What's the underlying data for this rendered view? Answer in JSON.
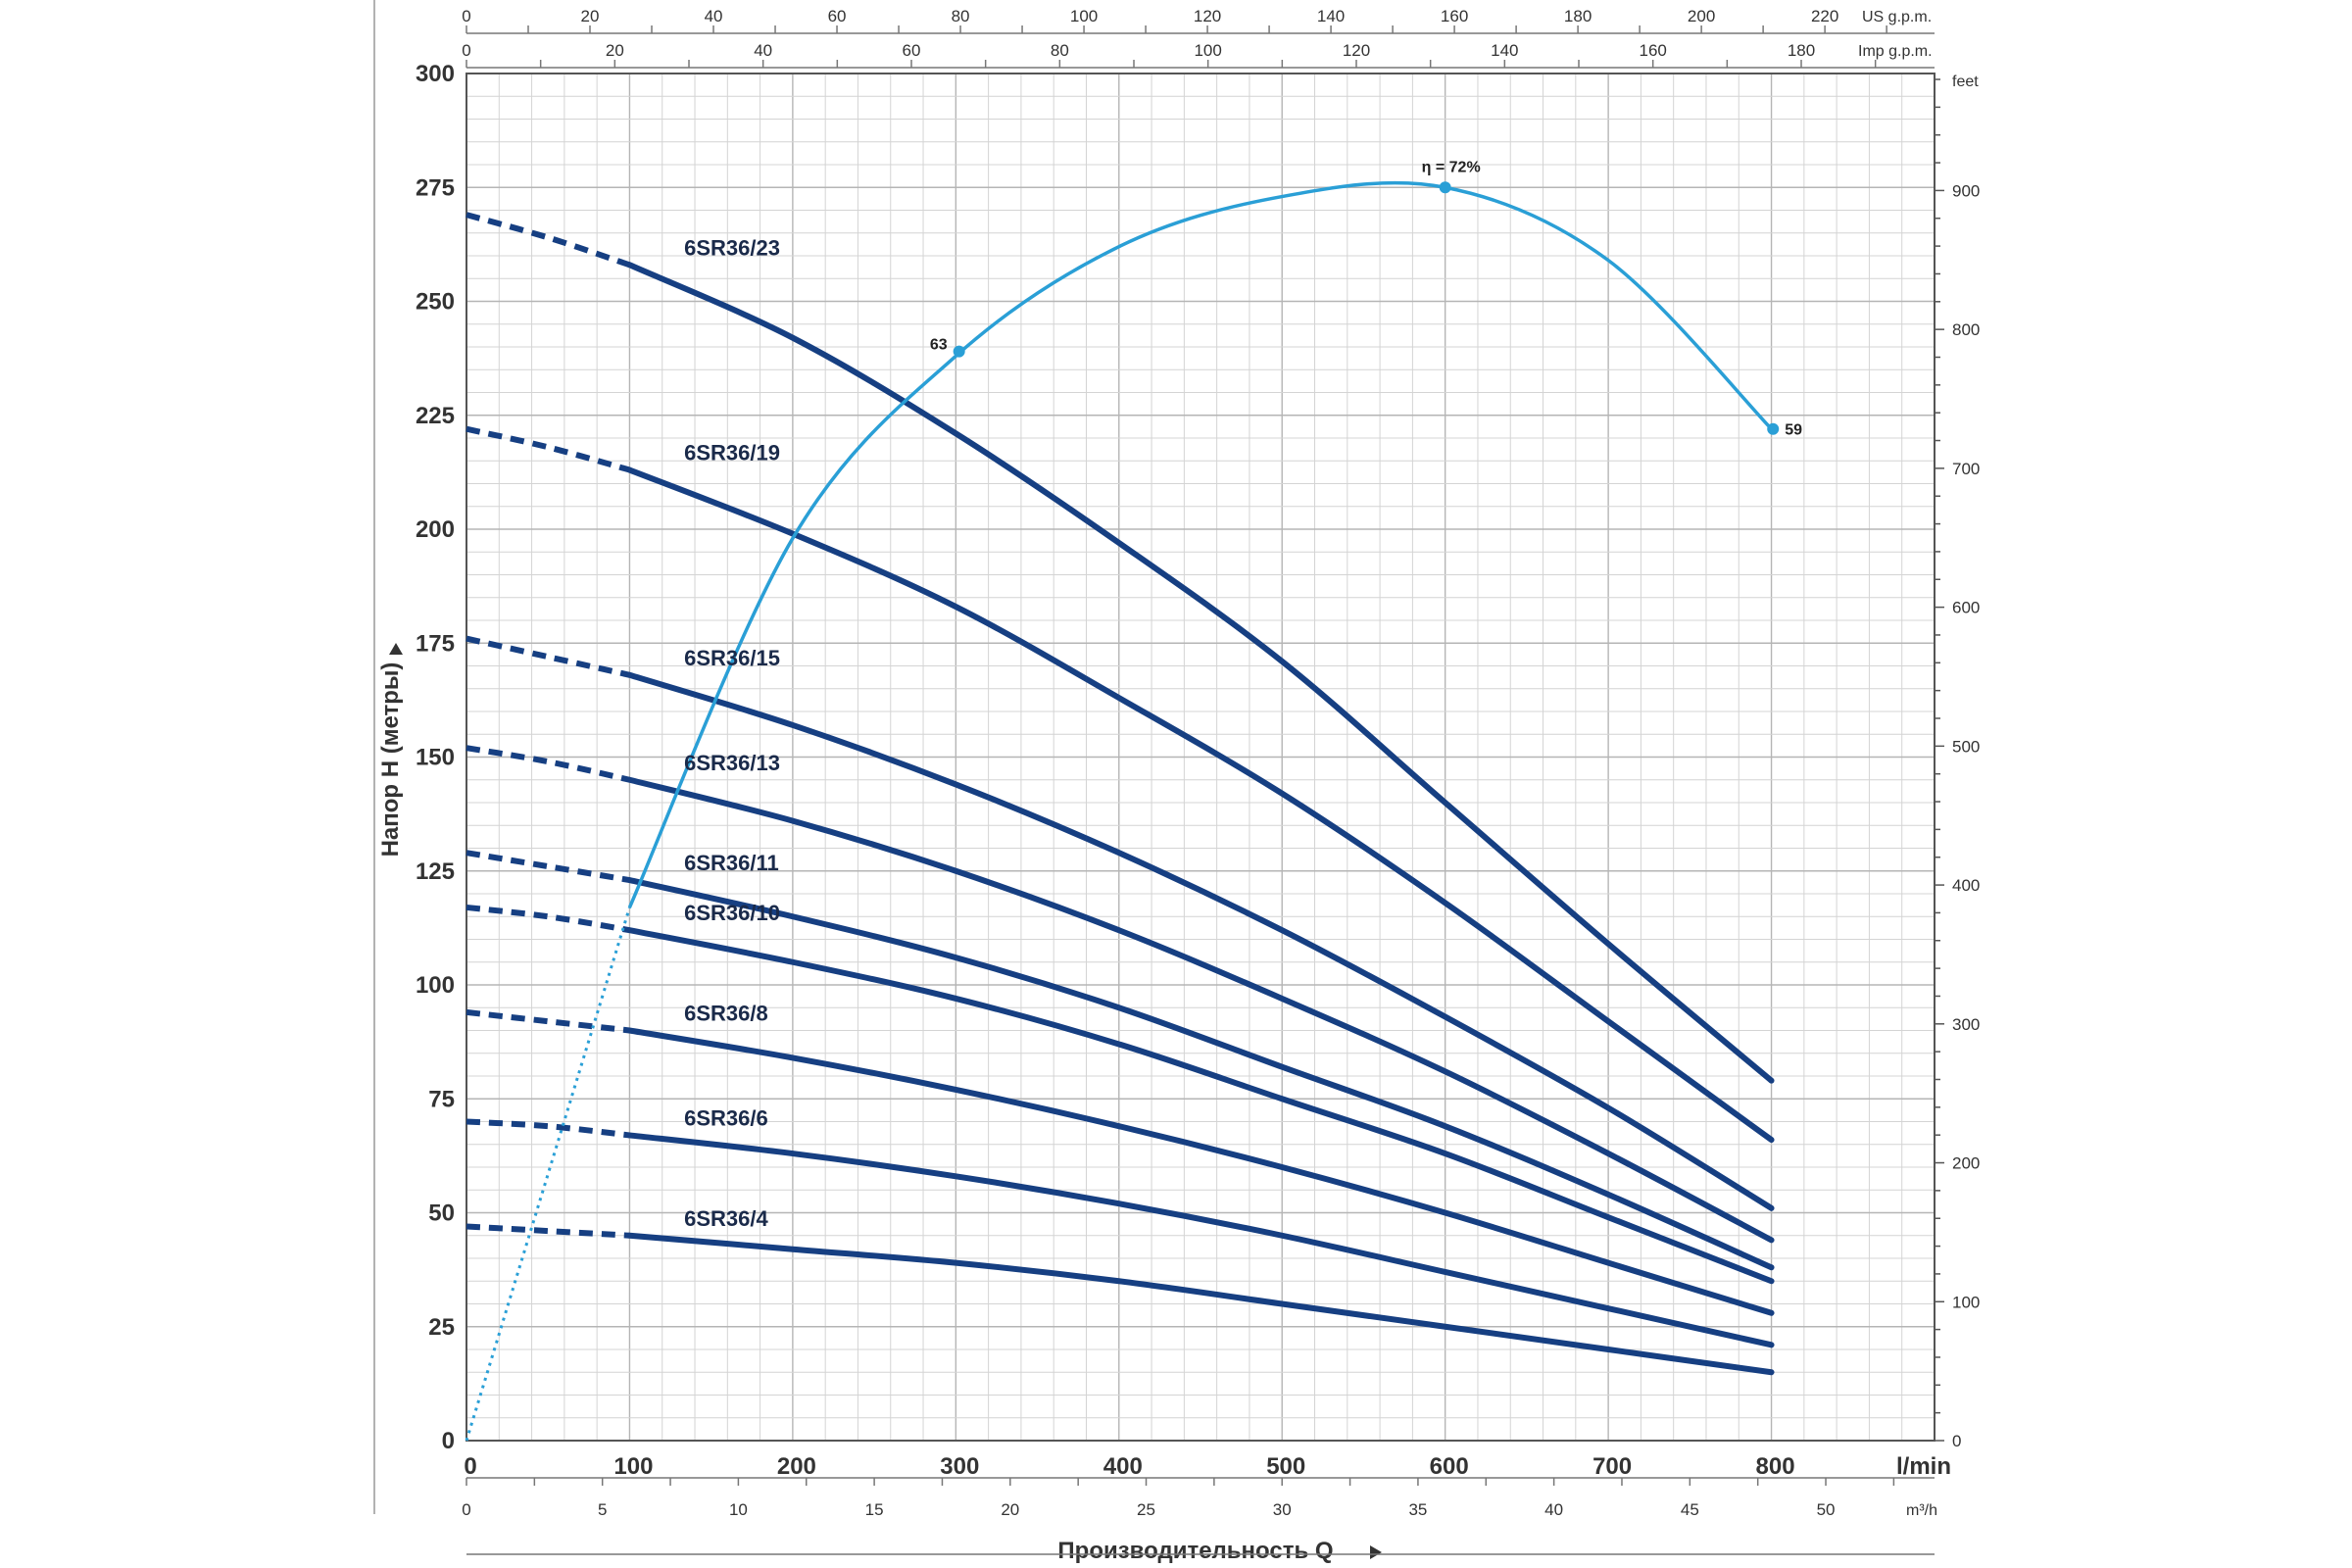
{
  "chart_data": {
    "type": "line",
    "title": "",
    "xlabel": "Производительность Q",
    "ylabel": "Напор H (метры)",
    "xlim": [
      0,
      900
    ],
    "ylim": [
      0,
      300
    ],
    "x_unit": "l/min",
    "x_ticks": [
      "0",
      "100",
      "200",
      "300",
      "400",
      "500",
      "600",
      "700",
      "800"
    ],
    "y_ticks": [
      "0",
      "25",
      "50",
      "75",
      "100",
      "125",
      "150",
      "175",
      "200",
      "225",
      "250",
      "275",
      "300"
    ],
    "right_axis": {
      "unit": "feet",
      "ticks": [
        "0",
        "100",
        "200",
        "300",
        "400",
        "500",
        "600",
        "700",
        "800",
        "900"
      ]
    },
    "m3h_axis": {
      "unit": "m³/h",
      "ticks": [
        "0",
        "5",
        "10",
        "15",
        "20",
        "25",
        "30",
        "35",
        "40",
        "45",
        "50"
      ]
    },
    "us_gpm_axis": {
      "unit": "US g.p.m.",
      "ticks": [
        "0",
        "20",
        "40",
        "60",
        "80",
        "100",
        "120",
        "140",
        "160",
        "180",
        "200",
        "220"
      ]
    },
    "imp_gpm_axis": {
      "unit": "Imp g.p.m.",
      "ticks": [
        "0",
        "20",
        "40",
        "60",
        "80",
        "100",
        "120",
        "140",
        "160",
        "180"
      ]
    },
    "curve_color": "#163f82",
    "efficiency_color": "#2a9fd6",
    "series": [
      {
        "name": "6SR36/23",
        "x": [
          0,
          50,
          100,
          200,
          300,
          400,
          500,
          600,
          700,
          800
        ],
        "y": [
          269,
          264,
          258,
          242,
          221,
          197,
          171,
          140,
          109,
          79
        ]
      },
      {
        "name": "6SR36/19",
        "x": [
          0,
          50,
          100,
          200,
          300,
          400,
          500,
          600,
          700,
          800
        ],
        "y": [
          222,
          218,
          213,
          199,
          183,
          163,
          142,
          118,
          92,
          66
        ]
      },
      {
        "name": "6SR36/15",
        "x": [
          0,
          50,
          100,
          200,
          300,
          400,
          500,
          600,
          700,
          800
        ],
        "y": [
          176,
          172,
          168,
          157,
          144,
          129,
          112,
          93,
          73,
          51
        ]
      },
      {
        "name": "6SR36/13",
        "x": [
          0,
          50,
          100,
          200,
          300,
          400,
          500,
          600,
          700,
          800
        ],
        "y": [
          152,
          149,
          145,
          136,
          125,
          112,
          97,
          81,
          63,
          44
        ]
      },
      {
        "name": "6SR36/11",
        "x": [
          0,
          50,
          100,
          200,
          300,
          400,
          500,
          600,
          700,
          800
        ],
        "y": [
          129,
          126,
          123,
          115,
          106,
          95,
          82,
          69,
          54,
          38
        ]
      },
      {
        "name": "6SR36/10",
        "x": [
          0,
          50,
          100,
          200,
          300,
          400,
          500,
          600,
          700,
          800
        ],
        "y": [
          117,
          115,
          112,
          105,
          97,
          87,
          75,
          63,
          49,
          35
        ]
      },
      {
        "name": "6SR36/8",
        "x": [
          0,
          50,
          100,
          200,
          300,
          400,
          500,
          600,
          700,
          800
        ],
        "y": [
          94,
          92,
          90,
          84,
          77,
          69,
          60,
          50,
          39,
          28
        ]
      },
      {
        "name": "6SR36/6",
        "x": [
          0,
          50,
          100,
          200,
          300,
          400,
          500,
          600,
          700,
          800
        ],
        "y": [
          70,
          69,
          67,
          63,
          58,
          52,
          45,
          37,
          29,
          21
        ]
      },
      {
        "name": "6SR36/4",
        "x": [
          0,
          50,
          100,
          200,
          300,
          400,
          500,
          600,
          700,
          800
        ],
        "y": [
          47,
          46,
          45,
          42,
          39,
          35,
          30,
          25,
          20,
          15
        ]
      }
    ],
    "efficiency_curve": {
      "x": [
        100,
        200,
        300,
        400,
        500,
        600,
        700,
        800
      ],
      "y": [
        117,
        198,
        238,
        262,
        273,
        275,
        259,
        222
      ],
      "points": [
        {
          "label": "63",
          "x": 302,
          "y": 239
        },
        {
          "label": "η = 72%",
          "x": 600,
          "y": 275
        },
        {
          "label": "59",
          "x": 801,
          "y": 222
        }
      ]
    }
  }
}
